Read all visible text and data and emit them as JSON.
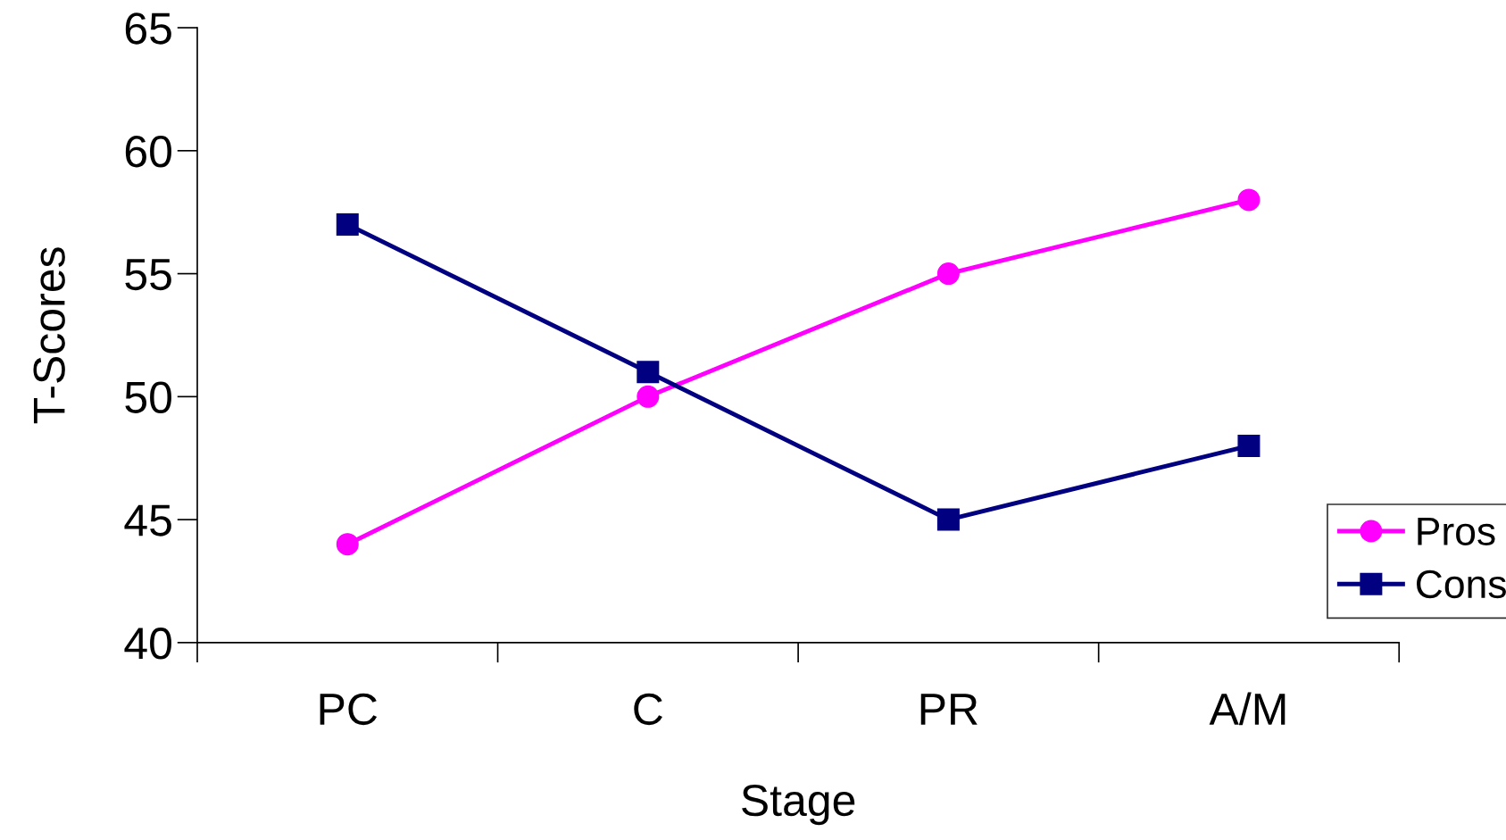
{
  "chart_data": {
    "type": "line",
    "xlabel": "Stage",
    "ylabel": "T-Scores",
    "categories": [
      "PC",
      "C",
      "PR",
      "A/M"
    ],
    "series": [
      {
        "name": "Pros",
        "color": "#ff00ff",
        "marker": "circle",
        "values": [
          44,
          50,
          55,
          58
        ]
      },
      {
        "name": "Cons",
        "color": "#000080",
        "marker": "square",
        "values": [
          57,
          51,
          45,
          48
        ]
      }
    ],
    "ylim": [
      40,
      65
    ],
    "yticks": [
      40,
      45,
      50,
      55,
      60,
      65
    ],
    "grid": false,
    "legend": "right",
    "line_style": "solid"
  }
}
